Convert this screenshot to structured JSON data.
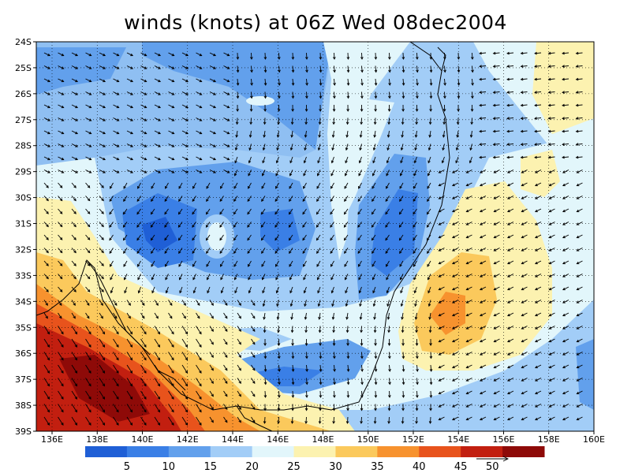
{
  "title": "winds (knots) at 06Z Wed 08dec2004",
  "lat_labels": [
    "24S",
    "25S",
    "26S",
    "27S",
    "28S",
    "29S",
    "30S",
    "31S",
    "32S",
    "33S",
    "34S",
    "35S",
    "36S",
    "37S",
    "38S",
    "39S"
  ],
  "lon_labels": [
    "136E",
    "138E",
    "140E",
    "142E",
    "144E",
    "146E",
    "148E",
    "150E",
    "152E",
    "154E",
    "156E",
    "158E",
    "160E"
  ],
  "colorbar": {
    "colors": [
      "#1f5fd6",
      "#3a7fe6",
      "#62a0ec",
      "#a2cdf7",
      "#e2f6fb",
      "#fcf2b0",
      "#fbc95c",
      "#f7922e",
      "#e8531c",
      "#c21f10",
      "#8e0a08"
    ],
    "labels": [
      "5",
      "10",
      "15",
      "20",
      "25",
      "30",
      "35",
      "40",
      "45"
    ]
  },
  "reference_vector_label": "50",
  "colors": {
    "land_outline": "#000000",
    "grid": "#000000"
  },
  "arrow_color": "#000000"
}
